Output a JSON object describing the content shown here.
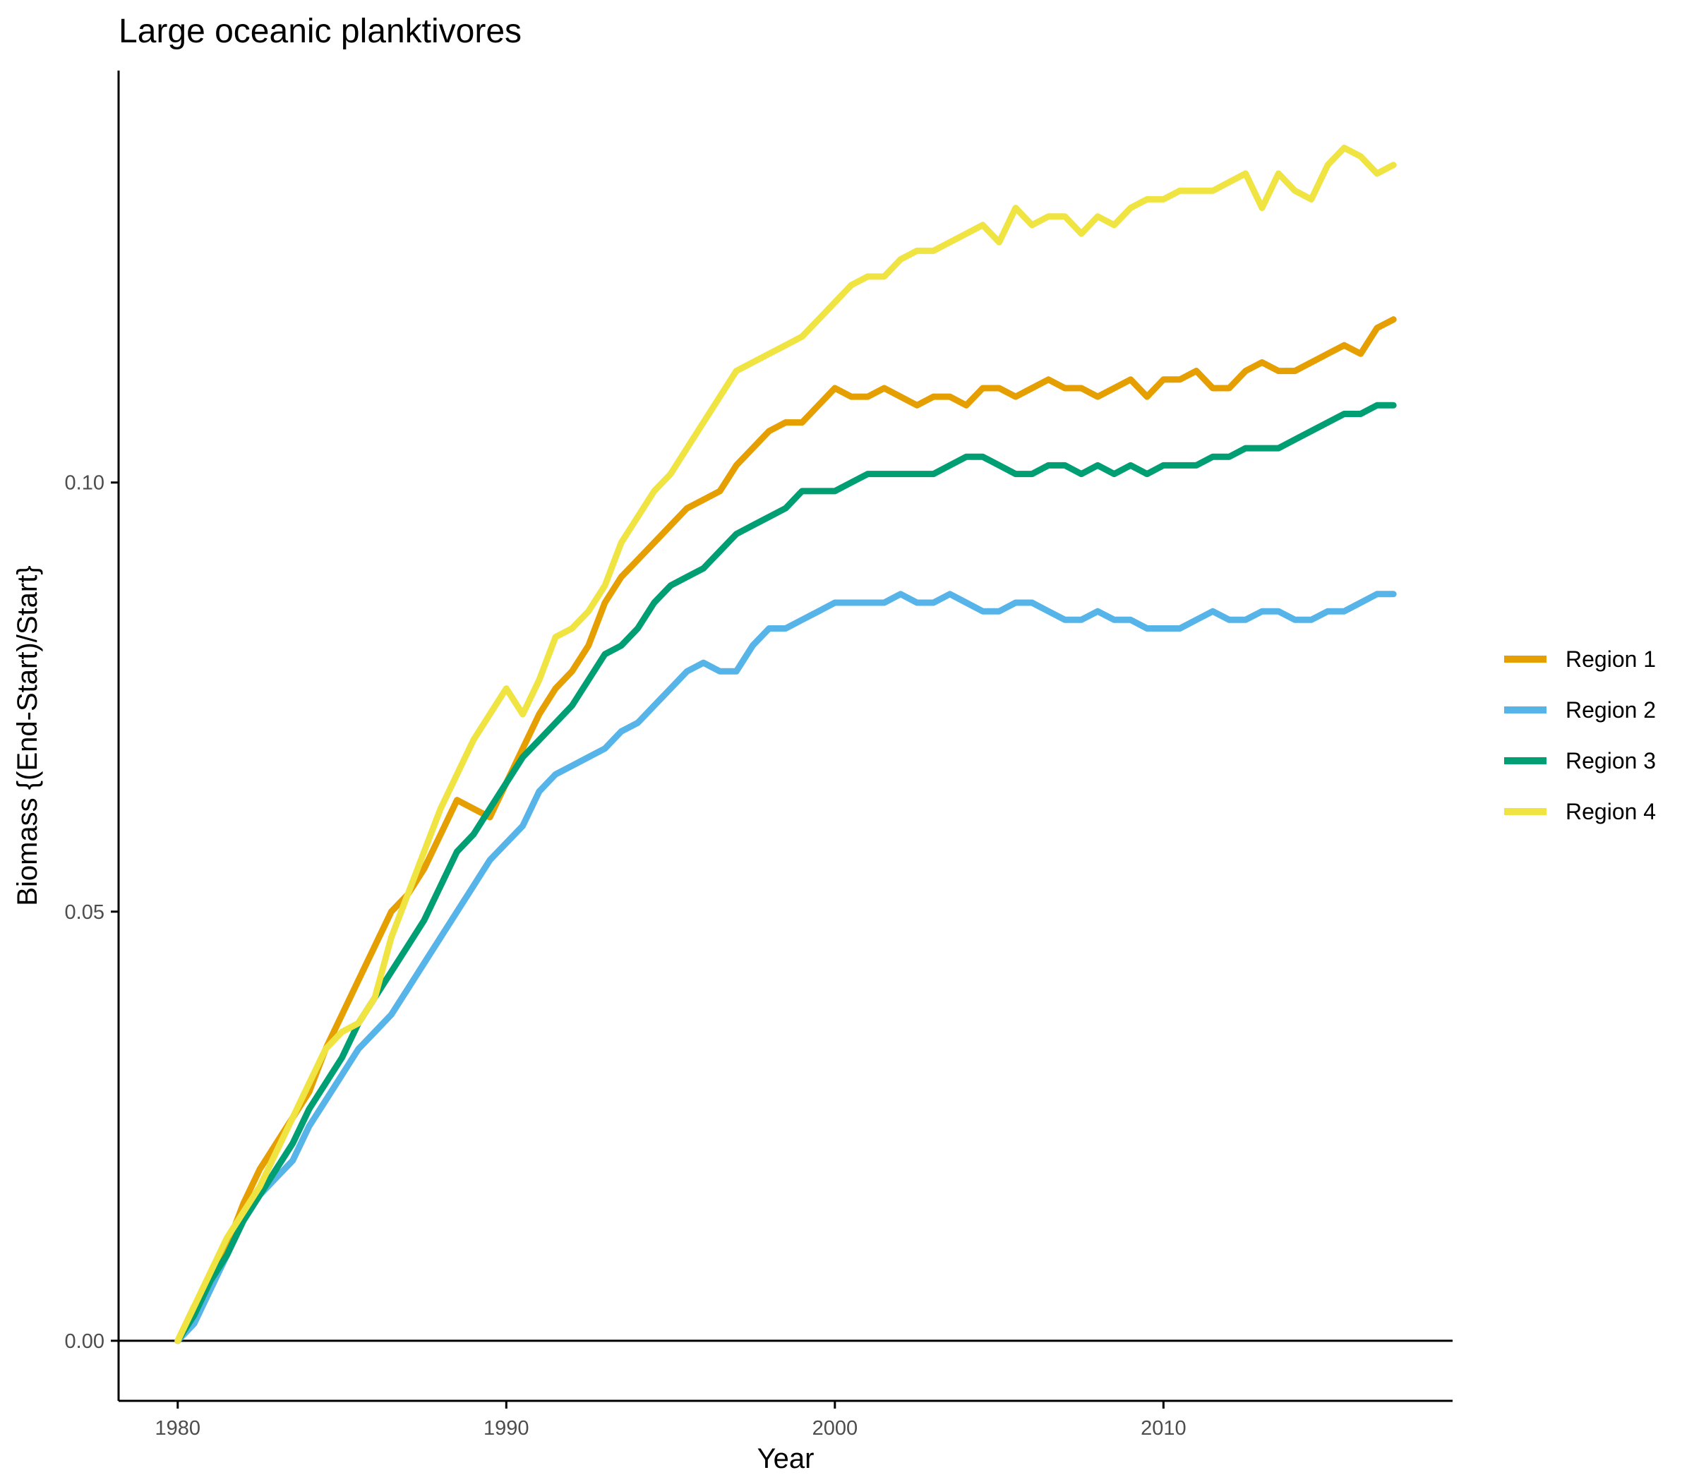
{
  "chart_data": {
    "type": "line",
    "title": "Large oceanic planktivores",
    "xlabel": "Year",
    "ylabel": "Biomass {(End-Start)/Start}",
    "xlim": [
      1978.2,
      2018.8
    ],
    "ylim": [
      -0.007,
      0.148
    ],
    "x_ticks": [
      1980,
      1990,
      2000,
      2010
    ],
    "x_tick_labels": [
      "1980",
      "1990",
      "2000",
      "2010"
    ],
    "y_ticks": [
      0.0,
      0.05,
      0.1
    ],
    "y_tick_labels": [
      "0.00",
      "0.05",
      "0.10"
    ],
    "reference_line_y": 0,
    "grid": false,
    "legend_position": "right",
    "series": [
      {
        "name": "Region 1",
        "color": "#E69F00",
        "points": [
          [
            1980.0,
            0.0
          ],
          [
            1980.5,
            0.004
          ],
          [
            1981.0,
            0.007
          ],
          [
            1981.5,
            0.011
          ],
          [
            1982.0,
            0.016
          ],
          [
            1982.5,
            0.02
          ],
          [
            1983.0,
            0.023
          ],
          [
            1983.5,
            0.026
          ],
          [
            1984.0,
            0.029
          ],
          [
            1984.5,
            0.034
          ],
          [
            1985.0,
            0.038
          ],
          [
            1985.5,
            0.042
          ],
          [
            1986.0,
            0.046
          ],
          [
            1986.5,
            0.05
          ],
          [
            1987.0,
            0.052
          ],
          [
            1987.5,
            0.055
          ],
          [
            1988.0,
            0.059
          ],
          [
            1988.5,
            0.063
          ],
          [
            1989.0,
            0.062
          ],
          [
            1989.5,
            0.061
          ],
          [
            1990.0,
            0.065
          ],
          [
            1990.5,
            0.069
          ],
          [
            1991.0,
            0.073
          ],
          [
            1991.5,
            0.076
          ],
          [
            1992.0,
            0.078
          ],
          [
            1992.5,
            0.081
          ],
          [
            1993.0,
            0.086
          ],
          [
            1993.5,
            0.089
          ],
          [
            1994.0,
            0.091
          ],
          [
            1994.5,
            0.093
          ],
          [
            1995.0,
            0.095
          ],
          [
            1995.5,
            0.097
          ],
          [
            1996.0,
            0.098
          ],
          [
            1996.5,
            0.099
          ],
          [
            1997.0,
            0.102
          ],
          [
            1997.5,
            0.104
          ],
          [
            1998.0,
            0.106
          ],
          [
            1998.5,
            0.107
          ],
          [
            1999.0,
            0.107
          ],
          [
            1999.5,
            0.109
          ],
          [
            2000.0,
            0.111
          ],
          [
            2000.5,
            0.11
          ],
          [
            2001.0,
            0.11
          ],
          [
            2001.5,
            0.111
          ],
          [
            2002.0,
            0.11
          ],
          [
            2002.5,
            0.109
          ],
          [
            2003.0,
            0.11
          ],
          [
            2003.5,
            0.11
          ],
          [
            2004.0,
            0.109
          ],
          [
            2004.5,
            0.111
          ],
          [
            2005.0,
            0.111
          ],
          [
            2005.5,
            0.11
          ],
          [
            2006.0,
            0.111
          ],
          [
            2006.5,
            0.112
          ],
          [
            2007.0,
            0.111
          ],
          [
            2007.5,
            0.111
          ],
          [
            2008.0,
            0.11
          ],
          [
            2008.5,
            0.111
          ],
          [
            2009.0,
            0.112
          ],
          [
            2009.5,
            0.11
          ],
          [
            2010.0,
            0.112
          ],
          [
            2010.5,
            0.112
          ],
          [
            2011.0,
            0.113
          ],
          [
            2011.5,
            0.111
          ],
          [
            2012.0,
            0.111
          ],
          [
            2012.5,
            0.113
          ],
          [
            2013.0,
            0.114
          ],
          [
            2013.5,
            0.113
          ],
          [
            2014.0,
            0.113
          ],
          [
            2014.5,
            0.114
          ],
          [
            2015.0,
            0.115
          ],
          [
            2015.5,
            0.116
          ],
          [
            2016.0,
            0.115
          ],
          [
            2016.5,
            0.118
          ],
          [
            2017.0,
            0.119
          ]
        ]
      },
      {
        "name": "Region 2",
        "color": "#56B4E9",
        "points": [
          [
            1980.0,
            0.0
          ],
          [
            1980.5,
            0.002
          ],
          [
            1981.0,
            0.006
          ],
          [
            1981.5,
            0.01
          ],
          [
            1982.0,
            0.014
          ],
          [
            1982.5,
            0.017
          ],
          [
            1983.0,
            0.019
          ],
          [
            1983.5,
            0.021
          ],
          [
            1984.0,
            0.025
          ],
          [
            1984.5,
            0.028
          ],
          [
            1985.0,
            0.031
          ],
          [
            1985.5,
            0.034
          ],
          [
            1986.0,
            0.036
          ],
          [
            1986.5,
            0.038
          ],
          [
            1987.0,
            0.041
          ],
          [
            1987.5,
            0.044
          ],
          [
            1988.0,
            0.047
          ],
          [
            1988.5,
            0.05
          ],
          [
            1989.0,
            0.053
          ],
          [
            1989.5,
            0.056
          ],
          [
            1990.0,
            0.058
          ],
          [
            1990.5,
            0.06
          ],
          [
            1991.0,
            0.064
          ],
          [
            1991.5,
            0.066
          ],
          [
            1992.0,
            0.067
          ],
          [
            1992.5,
            0.068
          ],
          [
            1993.0,
            0.069
          ],
          [
            1993.5,
            0.071
          ],
          [
            1994.0,
            0.072
          ],
          [
            1994.5,
            0.074
          ],
          [
            1995.0,
            0.076
          ],
          [
            1995.5,
            0.078
          ],
          [
            1996.0,
            0.079
          ],
          [
            1996.5,
            0.078
          ],
          [
            1997.0,
            0.078
          ],
          [
            1997.5,
            0.081
          ],
          [
            1998.0,
            0.083
          ],
          [
            1998.5,
            0.083
          ],
          [
            1999.0,
            0.084
          ],
          [
            1999.5,
            0.085
          ],
          [
            2000.0,
            0.086
          ],
          [
            2000.5,
            0.086
          ],
          [
            2001.0,
            0.086
          ],
          [
            2001.5,
            0.086
          ],
          [
            2002.0,
            0.087
          ],
          [
            2002.5,
            0.086
          ],
          [
            2003.0,
            0.086
          ],
          [
            2003.5,
            0.087
          ],
          [
            2004.0,
            0.086
          ],
          [
            2004.5,
            0.085
          ],
          [
            2005.0,
            0.085
          ],
          [
            2005.5,
            0.086
          ],
          [
            2006.0,
            0.086
          ],
          [
            2006.5,
            0.085
          ],
          [
            2007.0,
            0.084
          ],
          [
            2007.5,
            0.084
          ],
          [
            2008.0,
            0.085
          ],
          [
            2008.5,
            0.084
          ],
          [
            2009.0,
            0.084
          ],
          [
            2009.5,
            0.083
          ],
          [
            2010.0,
            0.083
          ],
          [
            2010.5,
            0.083
          ],
          [
            2011.0,
            0.084
          ],
          [
            2011.5,
            0.085
          ],
          [
            2012.0,
            0.084
          ],
          [
            2012.5,
            0.084
          ],
          [
            2013.0,
            0.085
          ],
          [
            2013.5,
            0.085
          ],
          [
            2014.0,
            0.084
          ],
          [
            2014.5,
            0.084
          ],
          [
            2015.0,
            0.085
          ],
          [
            2015.5,
            0.085
          ],
          [
            2016.0,
            0.086
          ],
          [
            2016.5,
            0.087
          ],
          [
            2017.0,
            0.087
          ]
        ]
      },
      {
        "name": "Region 3",
        "color": "#009E73",
        "points": [
          [
            1980.0,
            0.0
          ],
          [
            1980.5,
            0.003
          ],
          [
            1981.0,
            0.007
          ],
          [
            1981.5,
            0.01
          ],
          [
            1982.0,
            0.014
          ],
          [
            1982.5,
            0.017
          ],
          [
            1983.0,
            0.02
          ],
          [
            1983.5,
            0.023
          ],
          [
            1984.0,
            0.027
          ],
          [
            1984.5,
            0.03
          ],
          [
            1985.0,
            0.033
          ],
          [
            1985.5,
            0.037
          ],
          [
            1986.0,
            0.04
          ],
          [
            1986.5,
            0.043
          ],
          [
            1987.0,
            0.046
          ],
          [
            1987.5,
            0.049
          ],
          [
            1988.0,
            0.053
          ],
          [
            1988.5,
            0.057
          ],
          [
            1989.0,
            0.059
          ],
          [
            1989.5,
            0.062
          ],
          [
            1990.0,
            0.065
          ],
          [
            1990.5,
            0.068
          ],
          [
            1991.0,
            0.07
          ],
          [
            1991.5,
            0.072
          ],
          [
            1992.0,
            0.074
          ],
          [
            1992.5,
            0.077
          ],
          [
            1993.0,
            0.08
          ],
          [
            1993.5,
            0.081
          ],
          [
            1994.0,
            0.083
          ],
          [
            1994.5,
            0.086
          ],
          [
            1995.0,
            0.088
          ],
          [
            1995.5,
            0.089
          ],
          [
            1996.0,
            0.09
          ],
          [
            1996.5,
            0.092
          ],
          [
            1997.0,
            0.094
          ],
          [
            1997.5,
            0.095
          ],
          [
            1998.0,
            0.096
          ],
          [
            1998.5,
            0.097
          ],
          [
            1999.0,
            0.099
          ],
          [
            1999.5,
            0.099
          ],
          [
            2000.0,
            0.099
          ],
          [
            2000.5,
            0.1
          ],
          [
            2001.0,
            0.101
          ],
          [
            2001.5,
            0.101
          ],
          [
            2002.0,
            0.101
          ],
          [
            2002.5,
            0.101
          ],
          [
            2003.0,
            0.101
          ],
          [
            2003.5,
            0.102
          ],
          [
            2004.0,
            0.103
          ],
          [
            2004.5,
            0.103
          ],
          [
            2005.0,
            0.102
          ],
          [
            2005.5,
            0.101
          ],
          [
            2006.0,
            0.101
          ],
          [
            2006.5,
            0.102
          ],
          [
            2007.0,
            0.102
          ],
          [
            2007.5,
            0.101
          ],
          [
            2008.0,
            0.102
          ],
          [
            2008.5,
            0.101
          ],
          [
            2009.0,
            0.102
          ],
          [
            2009.5,
            0.101
          ],
          [
            2010.0,
            0.102
          ],
          [
            2010.5,
            0.102
          ],
          [
            2011.0,
            0.102
          ],
          [
            2011.5,
            0.103
          ],
          [
            2012.0,
            0.103
          ],
          [
            2012.5,
            0.104
          ],
          [
            2013.0,
            0.104
          ],
          [
            2013.5,
            0.104
          ],
          [
            2014.0,
            0.105
          ],
          [
            2014.5,
            0.106
          ],
          [
            2015.0,
            0.107
          ],
          [
            2015.5,
            0.108
          ],
          [
            2016.0,
            0.108
          ],
          [
            2016.5,
            0.109
          ],
          [
            2017.0,
            0.109
          ]
        ]
      },
      {
        "name": "Region 4",
        "color": "#F0E442",
        "points": [
          [
            1980.0,
            0.0
          ],
          [
            1980.5,
            0.004
          ],
          [
            1981.0,
            0.008
          ],
          [
            1981.5,
            0.012
          ],
          [
            1982.0,
            0.015
          ],
          [
            1982.5,
            0.018
          ],
          [
            1983.0,
            0.022
          ],
          [
            1983.5,
            0.026
          ],
          [
            1984.0,
            0.03
          ],
          [
            1984.5,
            0.034
          ],
          [
            1985.0,
            0.036
          ],
          [
            1985.5,
            0.037
          ],
          [
            1986.0,
            0.04
          ],
          [
            1986.5,
            0.047
          ],
          [
            1987.0,
            0.052
          ],
          [
            1987.5,
            0.057
          ],
          [
            1988.0,
            0.062
          ],
          [
            1988.5,
            0.066
          ],
          [
            1989.0,
            0.07
          ],
          [
            1989.5,
            0.073
          ],
          [
            1990.0,
            0.076
          ],
          [
            1990.5,
            0.073
          ],
          [
            1991.0,
            0.077
          ],
          [
            1991.5,
            0.082
          ],
          [
            1992.0,
            0.083
          ],
          [
            1992.5,
            0.085
          ],
          [
            1993.0,
            0.088
          ],
          [
            1993.5,
            0.093
          ],
          [
            1994.0,
            0.096
          ],
          [
            1994.5,
            0.099
          ],
          [
            1995.0,
            0.101
          ],
          [
            1995.5,
            0.104
          ],
          [
            1996.0,
            0.107
          ],
          [
            1996.5,
            0.11
          ],
          [
            1997.0,
            0.113
          ],
          [
            1997.5,
            0.114
          ],
          [
            1998.0,
            0.115
          ],
          [
            1998.5,
            0.116
          ],
          [
            1999.0,
            0.117
          ],
          [
            1999.5,
            0.119
          ],
          [
            2000.0,
            0.121
          ],
          [
            2000.5,
            0.123
          ],
          [
            2001.0,
            0.124
          ],
          [
            2001.5,
            0.124
          ],
          [
            2002.0,
            0.126
          ],
          [
            2002.5,
            0.127
          ],
          [
            2003.0,
            0.127
          ],
          [
            2003.5,
            0.128
          ],
          [
            2004.0,
            0.129
          ],
          [
            2004.5,
            0.13
          ],
          [
            2005.0,
            0.128
          ],
          [
            2005.5,
            0.132
          ],
          [
            2006.0,
            0.13
          ],
          [
            2006.5,
            0.131
          ],
          [
            2007.0,
            0.131
          ],
          [
            2007.5,
            0.129
          ],
          [
            2008.0,
            0.131
          ],
          [
            2008.5,
            0.13
          ],
          [
            2009.0,
            0.132
          ],
          [
            2009.5,
            0.133
          ],
          [
            2010.0,
            0.133
          ],
          [
            2010.5,
            0.134
          ],
          [
            2011.0,
            0.134
          ],
          [
            2011.5,
            0.134
          ],
          [
            2012.0,
            0.135
          ],
          [
            2012.5,
            0.136
          ],
          [
            2013.0,
            0.132
          ],
          [
            2013.5,
            0.136
          ],
          [
            2014.0,
            0.134
          ],
          [
            2014.5,
            0.133
          ],
          [
            2015.0,
            0.137
          ],
          [
            2015.5,
            0.139
          ],
          [
            2016.0,
            0.138
          ],
          [
            2016.5,
            0.136
          ],
          [
            2017.0,
            0.137
          ]
        ]
      }
    ]
  }
}
